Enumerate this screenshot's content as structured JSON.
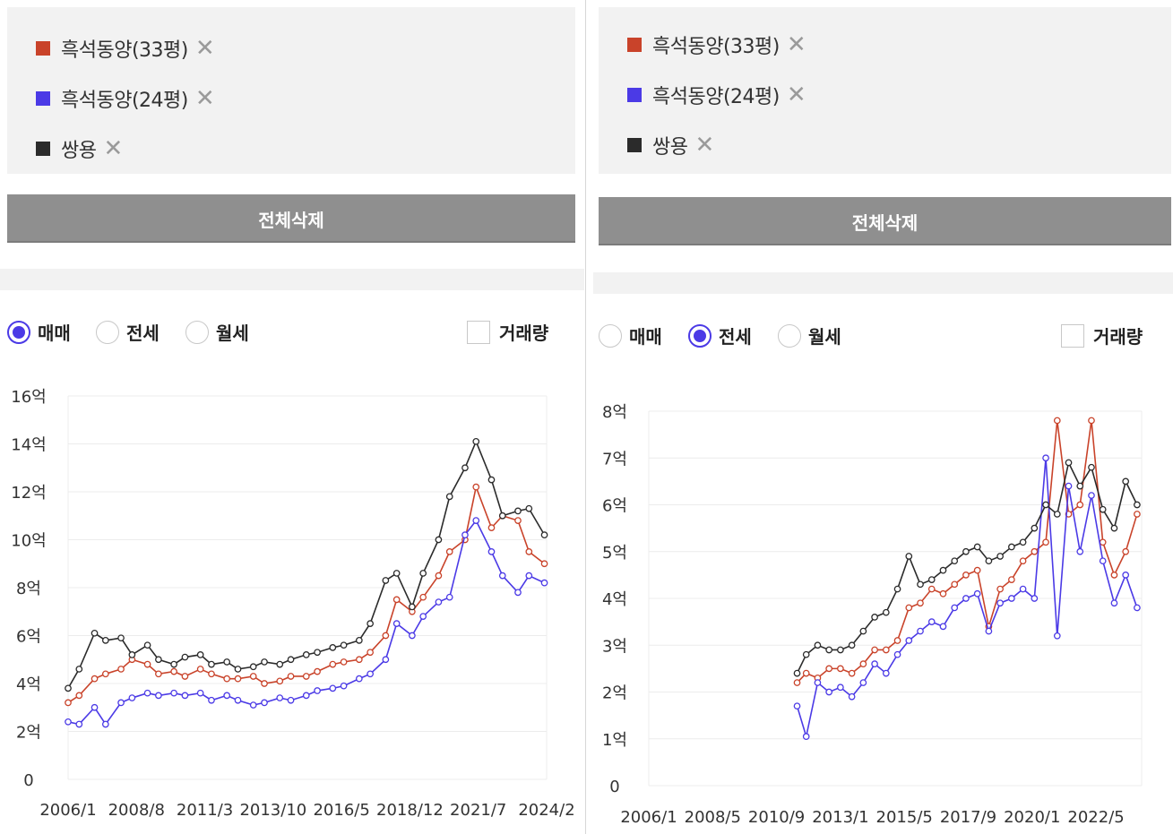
{
  "left": {
    "legend": [
      {
        "label": "흑석동양(33평)",
        "color": "#c9432a",
        "remove": "✕"
      },
      {
        "label": "흑석동양(24평)",
        "color": "#4b3ae6",
        "remove": "✕"
      },
      {
        "label": "쌍용",
        "color": "#2b2b2b",
        "remove": "✕"
      }
    ],
    "delete_all": "전체삭제",
    "radios": [
      {
        "label": "매매",
        "checked": true
      },
      {
        "label": "전세",
        "checked": false
      },
      {
        "label": "월세",
        "checked": false
      }
    ],
    "volume_label": "거래량"
  },
  "right": {
    "legend": [
      {
        "label": "흑석동양(33평)",
        "color": "#c9432a",
        "remove": "✕"
      },
      {
        "label": "흑석동양(24평)",
        "color": "#4b3ae6",
        "remove": "✕"
      },
      {
        "label": "쌍용",
        "color": "#2b2b2b",
        "remove": "✕"
      }
    ],
    "delete_all": "전체삭제",
    "radios": [
      {
        "label": "매매",
        "checked": false
      },
      {
        "label": "전세",
        "checked": true
      },
      {
        "label": "월세",
        "checked": false
      }
    ],
    "volume_label": "거래량"
  },
  "chart_data": [
    {
      "type": "line",
      "title": "",
      "grid": true,
      "x_min": "2006-01",
      "x_max": "2024-02",
      "x_ticks": [
        "2006/1",
        "2008/8",
        "2011/3",
        "2013/10",
        "2016/5",
        "2018/12",
        "2021/7",
        "2024/2"
      ],
      "y_ticks": [
        "0",
        "2억",
        "4억",
        "6억",
        "8억",
        "10억",
        "12억",
        "14억",
        "16억"
      ],
      "ylim": [
        0,
        16
      ],
      "series": [
        {
          "name": "흑석동양(33평)",
          "color": "#c9432a",
          "x": [
            "2006-01",
            "2006-06",
            "2007-01",
            "2007-06",
            "2008-01",
            "2008-06",
            "2009-01",
            "2009-06",
            "2010-01",
            "2010-06",
            "2011-01",
            "2011-06",
            "2012-01",
            "2012-06",
            "2013-01",
            "2013-06",
            "2014-01",
            "2014-06",
            "2015-01",
            "2015-06",
            "2016-01",
            "2016-06",
            "2017-01",
            "2017-06",
            "2018-01",
            "2018-06",
            "2019-01",
            "2019-06",
            "2020-01",
            "2020-06",
            "2021-01",
            "2021-06",
            "2022-01",
            "2022-06",
            "2023-01",
            "2023-06",
            "2024-01"
          ],
          "values": [
            3.2,
            3.5,
            4.2,
            4.4,
            4.6,
            5.0,
            4.8,
            4.4,
            4.5,
            4.3,
            4.6,
            4.4,
            4.2,
            4.2,
            4.3,
            4.0,
            4.1,
            4.3,
            4.3,
            4.5,
            4.8,
            4.9,
            5.0,
            5.3,
            6.0,
            7.5,
            7.0,
            7.6,
            8.5,
            9.5,
            10.0,
            12.2,
            10.5,
            11.0,
            10.8,
            9.5,
            9.0
          ]
        },
        {
          "name": "흑석동양(24평)",
          "color": "#4b3ae6",
          "x": [
            "2006-01",
            "2006-06",
            "2007-01",
            "2007-06",
            "2008-01",
            "2008-06",
            "2009-01",
            "2009-06",
            "2010-01",
            "2010-06",
            "2011-01",
            "2011-06",
            "2012-01",
            "2012-06",
            "2013-01",
            "2013-06",
            "2014-01",
            "2014-06",
            "2015-01",
            "2015-06",
            "2016-01",
            "2016-06",
            "2017-01",
            "2017-06",
            "2018-01",
            "2018-06",
            "2019-01",
            "2019-06",
            "2020-01",
            "2020-06",
            "2021-01",
            "2021-06",
            "2022-01",
            "2022-06",
            "2023-01",
            "2023-06",
            "2024-01"
          ],
          "values": [
            2.4,
            2.3,
            3.0,
            2.3,
            3.2,
            3.4,
            3.6,
            3.5,
            3.6,
            3.5,
            3.6,
            3.3,
            3.5,
            3.3,
            3.1,
            3.2,
            3.4,
            3.3,
            3.5,
            3.7,
            3.8,
            3.9,
            4.2,
            4.4,
            5.0,
            6.5,
            6.0,
            6.8,
            7.4,
            7.6,
            10.2,
            10.8,
            9.5,
            8.5,
            7.8,
            8.5,
            8.2
          ]
        },
        {
          "name": "쌍용",
          "color": "#2b2b2b",
          "x": [
            "2006-01",
            "2006-06",
            "2007-01",
            "2007-06",
            "2008-01",
            "2008-06",
            "2009-01",
            "2009-06",
            "2010-01",
            "2010-06",
            "2011-01",
            "2011-06",
            "2012-01",
            "2012-06",
            "2013-01",
            "2013-06",
            "2014-01",
            "2014-06",
            "2015-01",
            "2015-06",
            "2016-01",
            "2016-06",
            "2017-01",
            "2017-06",
            "2018-01",
            "2018-06",
            "2019-01",
            "2019-06",
            "2020-01",
            "2020-06",
            "2021-01",
            "2021-06",
            "2022-01",
            "2022-06",
            "2023-01",
            "2023-06",
            "2024-01"
          ],
          "values": [
            3.8,
            4.6,
            6.1,
            5.8,
            5.9,
            5.2,
            5.6,
            5.0,
            4.8,
            5.1,
            5.2,
            4.8,
            4.9,
            4.6,
            4.7,
            4.9,
            4.8,
            5.0,
            5.2,
            5.3,
            5.5,
            5.6,
            5.8,
            6.5,
            8.3,
            8.6,
            7.2,
            8.6,
            10.0,
            11.8,
            13.0,
            14.1,
            12.5,
            11.0,
            11.2,
            11.3,
            10.2
          ]
        }
      ]
    },
    {
      "type": "line",
      "title": "",
      "grid": true,
      "x_min": "2006-01",
      "x_max": "2024-01",
      "x_ticks": [
        "2006/1",
        "2008/5",
        "2010/9",
        "2013/1",
        "2015/5",
        "2017/9",
        "2020/1",
        "2022/5"
      ],
      "y_ticks": [
        "0",
        "1억",
        "2억",
        "3억",
        "4억",
        "5억",
        "6억",
        "7억",
        "8억"
      ],
      "ylim": [
        0,
        8
      ],
      "series": [
        {
          "name": "흑석동양(33평)",
          "color": "#c9432a",
          "x": [
            "2011-06",
            "2011-10",
            "2012-03",
            "2012-08",
            "2013-01",
            "2013-06",
            "2013-11",
            "2014-04",
            "2014-09",
            "2015-02",
            "2015-07",
            "2015-12",
            "2016-05",
            "2016-10",
            "2017-03",
            "2017-08",
            "2018-01",
            "2018-06",
            "2018-11",
            "2019-04",
            "2019-09",
            "2020-02",
            "2020-07",
            "2020-12",
            "2021-05",
            "2021-10",
            "2022-03",
            "2022-08",
            "2023-01",
            "2023-06",
            "2023-11"
          ],
          "values": [
            2.2,
            2.4,
            2.3,
            2.5,
            2.5,
            2.4,
            2.6,
            2.9,
            2.9,
            3.1,
            3.8,
            3.9,
            4.2,
            4.1,
            4.3,
            4.5,
            4.6,
            3.4,
            4.2,
            4.4,
            4.8,
            5.0,
            5.2,
            7.8,
            5.8,
            6.0,
            7.8,
            5.2,
            4.5,
            5.0,
            5.8
          ]
        },
        {
          "name": "흑석동양(24평)",
          "color": "#4b3ae6",
          "x": [
            "2011-06",
            "2011-10",
            "2012-03",
            "2012-08",
            "2013-01",
            "2013-06",
            "2013-11",
            "2014-04",
            "2014-09",
            "2015-02",
            "2015-07",
            "2015-12",
            "2016-05",
            "2016-10",
            "2017-03",
            "2017-08",
            "2018-01",
            "2018-06",
            "2018-11",
            "2019-04",
            "2019-09",
            "2020-02",
            "2020-07",
            "2020-12",
            "2021-05",
            "2021-10",
            "2022-03",
            "2022-08",
            "2023-01",
            "2023-06",
            "2023-11"
          ],
          "values": [
            1.7,
            1.05,
            2.2,
            2.0,
            2.1,
            1.9,
            2.2,
            2.6,
            2.4,
            2.8,
            3.1,
            3.3,
            3.5,
            3.4,
            3.8,
            4.0,
            4.1,
            3.3,
            3.9,
            4.0,
            4.2,
            4.0,
            7.0,
            3.2,
            6.4,
            5.0,
            6.2,
            4.8,
            3.9,
            4.5,
            3.8
          ]
        },
        {
          "name": "쌍용",
          "color": "#2b2b2b",
          "x": [
            "2011-06",
            "2011-10",
            "2012-03",
            "2012-08",
            "2013-01",
            "2013-06",
            "2013-11",
            "2014-04",
            "2014-09",
            "2015-02",
            "2015-07",
            "2015-12",
            "2016-05",
            "2016-10",
            "2017-03",
            "2017-08",
            "2018-01",
            "2018-06",
            "2018-11",
            "2019-04",
            "2019-09",
            "2020-02",
            "2020-07",
            "2020-12",
            "2021-05",
            "2021-10",
            "2022-03",
            "2022-08",
            "2023-01",
            "2023-06",
            "2023-11"
          ],
          "values": [
            2.4,
            2.8,
            3.0,
            2.9,
            2.9,
            3.0,
            3.3,
            3.6,
            3.7,
            4.2,
            4.9,
            4.3,
            4.4,
            4.6,
            4.8,
            5.0,
            5.1,
            4.8,
            4.9,
            5.1,
            5.2,
            5.5,
            6.0,
            5.8,
            6.9,
            6.4,
            6.8,
            5.9,
            5.5,
            6.5,
            6.0
          ]
        }
      ]
    }
  ]
}
